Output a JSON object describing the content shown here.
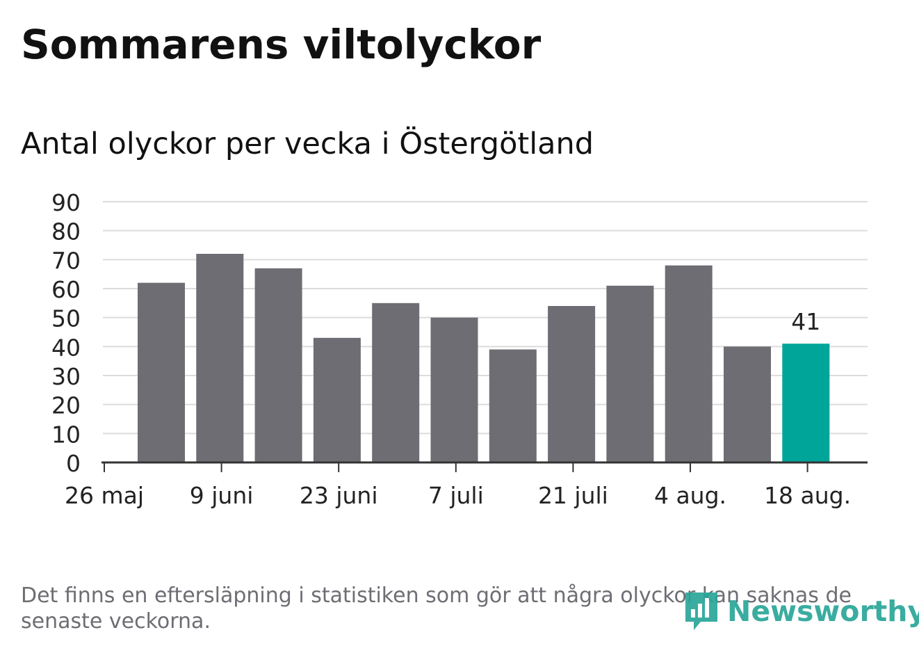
{
  "title": "Sommarens viltolyckor",
  "subtitle": "Antal olyckor per vecka i Östergötland",
  "footnote": "Det finns en eftersläpning i statistiken som gör att några olyckor kan saknas de senaste veckorna.",
  "logo": {
    "text": "Newsworthy",
    "icon": "bar-chart-speech-bubble-icon",
    "color": "#2aa598"
  },
  "colors": {
    "bar": "#6e6d73",
    "highlight": "#00a59a",
    "grid": "#dcdcdc",
    "axis": "#333333"
  },
  "chart_data": {
    "type": "bar",
    "title": "Sommarens viltolyckor",
    "subtitle": "Antal olyckor per vecka i Östergötland",
    "xlabel": "",
    "ylabel": "",
    "ylim": [
      0,
      90
    ],
    "yticks": [
      0,
      10,
      20,
      30,
      40,
      50,
      60,
      70,
      80,
      90
    ],
    "grid": true,
    "x_tick_labels": [
      "26 maj",
      "9 juni",
      "23 juni",
      "7 juli",
      "21 juli",
      "4 aug.",
      "18 aug."
    ],
    "values": [
      62,
      72,
      67,
      43,
      55,
      50,
      39,
      54,
      61,
      68,
      40,
      41
    ],
    "highlight_index": 11,
    "annotation": {
      "text": "41",
      "index": 11
    }
  }
}
